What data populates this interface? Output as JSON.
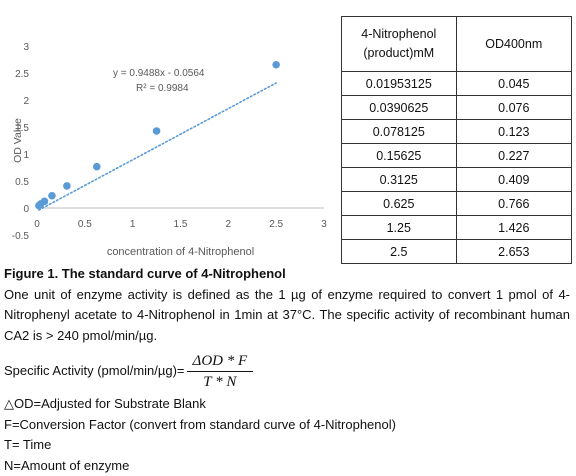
{
  "chart_data": {
    "type": "scatter",
    "xlabel": "concentration of 4-Nitrophenol",
    "ylabel": "OD Value",
    "xlim": [
      0,
      3
    ],
    "ylim": [
      -0.5,
      3
    ],
    "xticks": [
      "0",
      "0.5",
      "1",
      "1.5",
      "2",
      "2.5",
      "3"
    ],
    "yticks": [
      "-0.5",
      "0",
      "0.5",
      "1",
      "1.5",
      "2",
      "2.5",
      "3"
    ],
    "x": [
      0.01953125,
      0.0390625,
      0.078125,
      0.15625,
      0.3125,
      0.625,
      1.25,
      2.5
    ],
    "y": [
      0.045,
      0.076,
      0.123,
      0.227,
      0.409,
      0.766,
      1.426,
      2.653
    ],
    "trendline": {
      "slope": 0.9488,
      "intercept": -0.0564,
      "style": "dotted"
    },
    "equation": "y = 0.9488x - 0.0564",
    "r2": "R² = 0.9984",
    "grid": false,
    "marker_color": "#5b9bd5",
    "trend_color": "#5b9bd5"
  },
  "table": {
    "headers": [
      "4-Nitrophenol (product)mM",
      "OD400nm"
    ],
    "rows": [
      [
        "0.01953125",
        "0.045"
      ],
      [
        "0.0390625",
        "0.076"
      ],
      [
        "0.078125",
        "0.123"
      ],
      [
        "0.15625",
        "0.227"
      ],
      [
        "0.3125",
        "0.409"
      ],
      [
        "0.625",
        "0.766"
      ],
      [
        "1.25",
        "1.426"
      ],
      [
        "2.5",
        "2.653"
      ]
    ]
  },
  "caption": "Figure 1. The standard curve of 4-Nitrophenol",
  "paragraph": "One unit of enzyme activity is defined as the 1 µg of enzyme required to convert 1 pmol of 4-Nitrophenyl acetate to 4-Nitrophenol in 1min at 37°C. The specific activity of recombinant human CA2 is > 240 pmol/min/µg.",
  "formula": {
    "label": "Specific Activity (pmol/min/µg)=",
    "numerator": "ΔOD * F",
    "denominator": "T * N"
  },
  "definitions": [
    "△OD=Adjusted for Substrate Blank",
    "F=Conversion Factor (convert from standard curve of 4-Nitrophenol)",
    "T= Time",
    "N=Amount of enzyme"
  ]
}
